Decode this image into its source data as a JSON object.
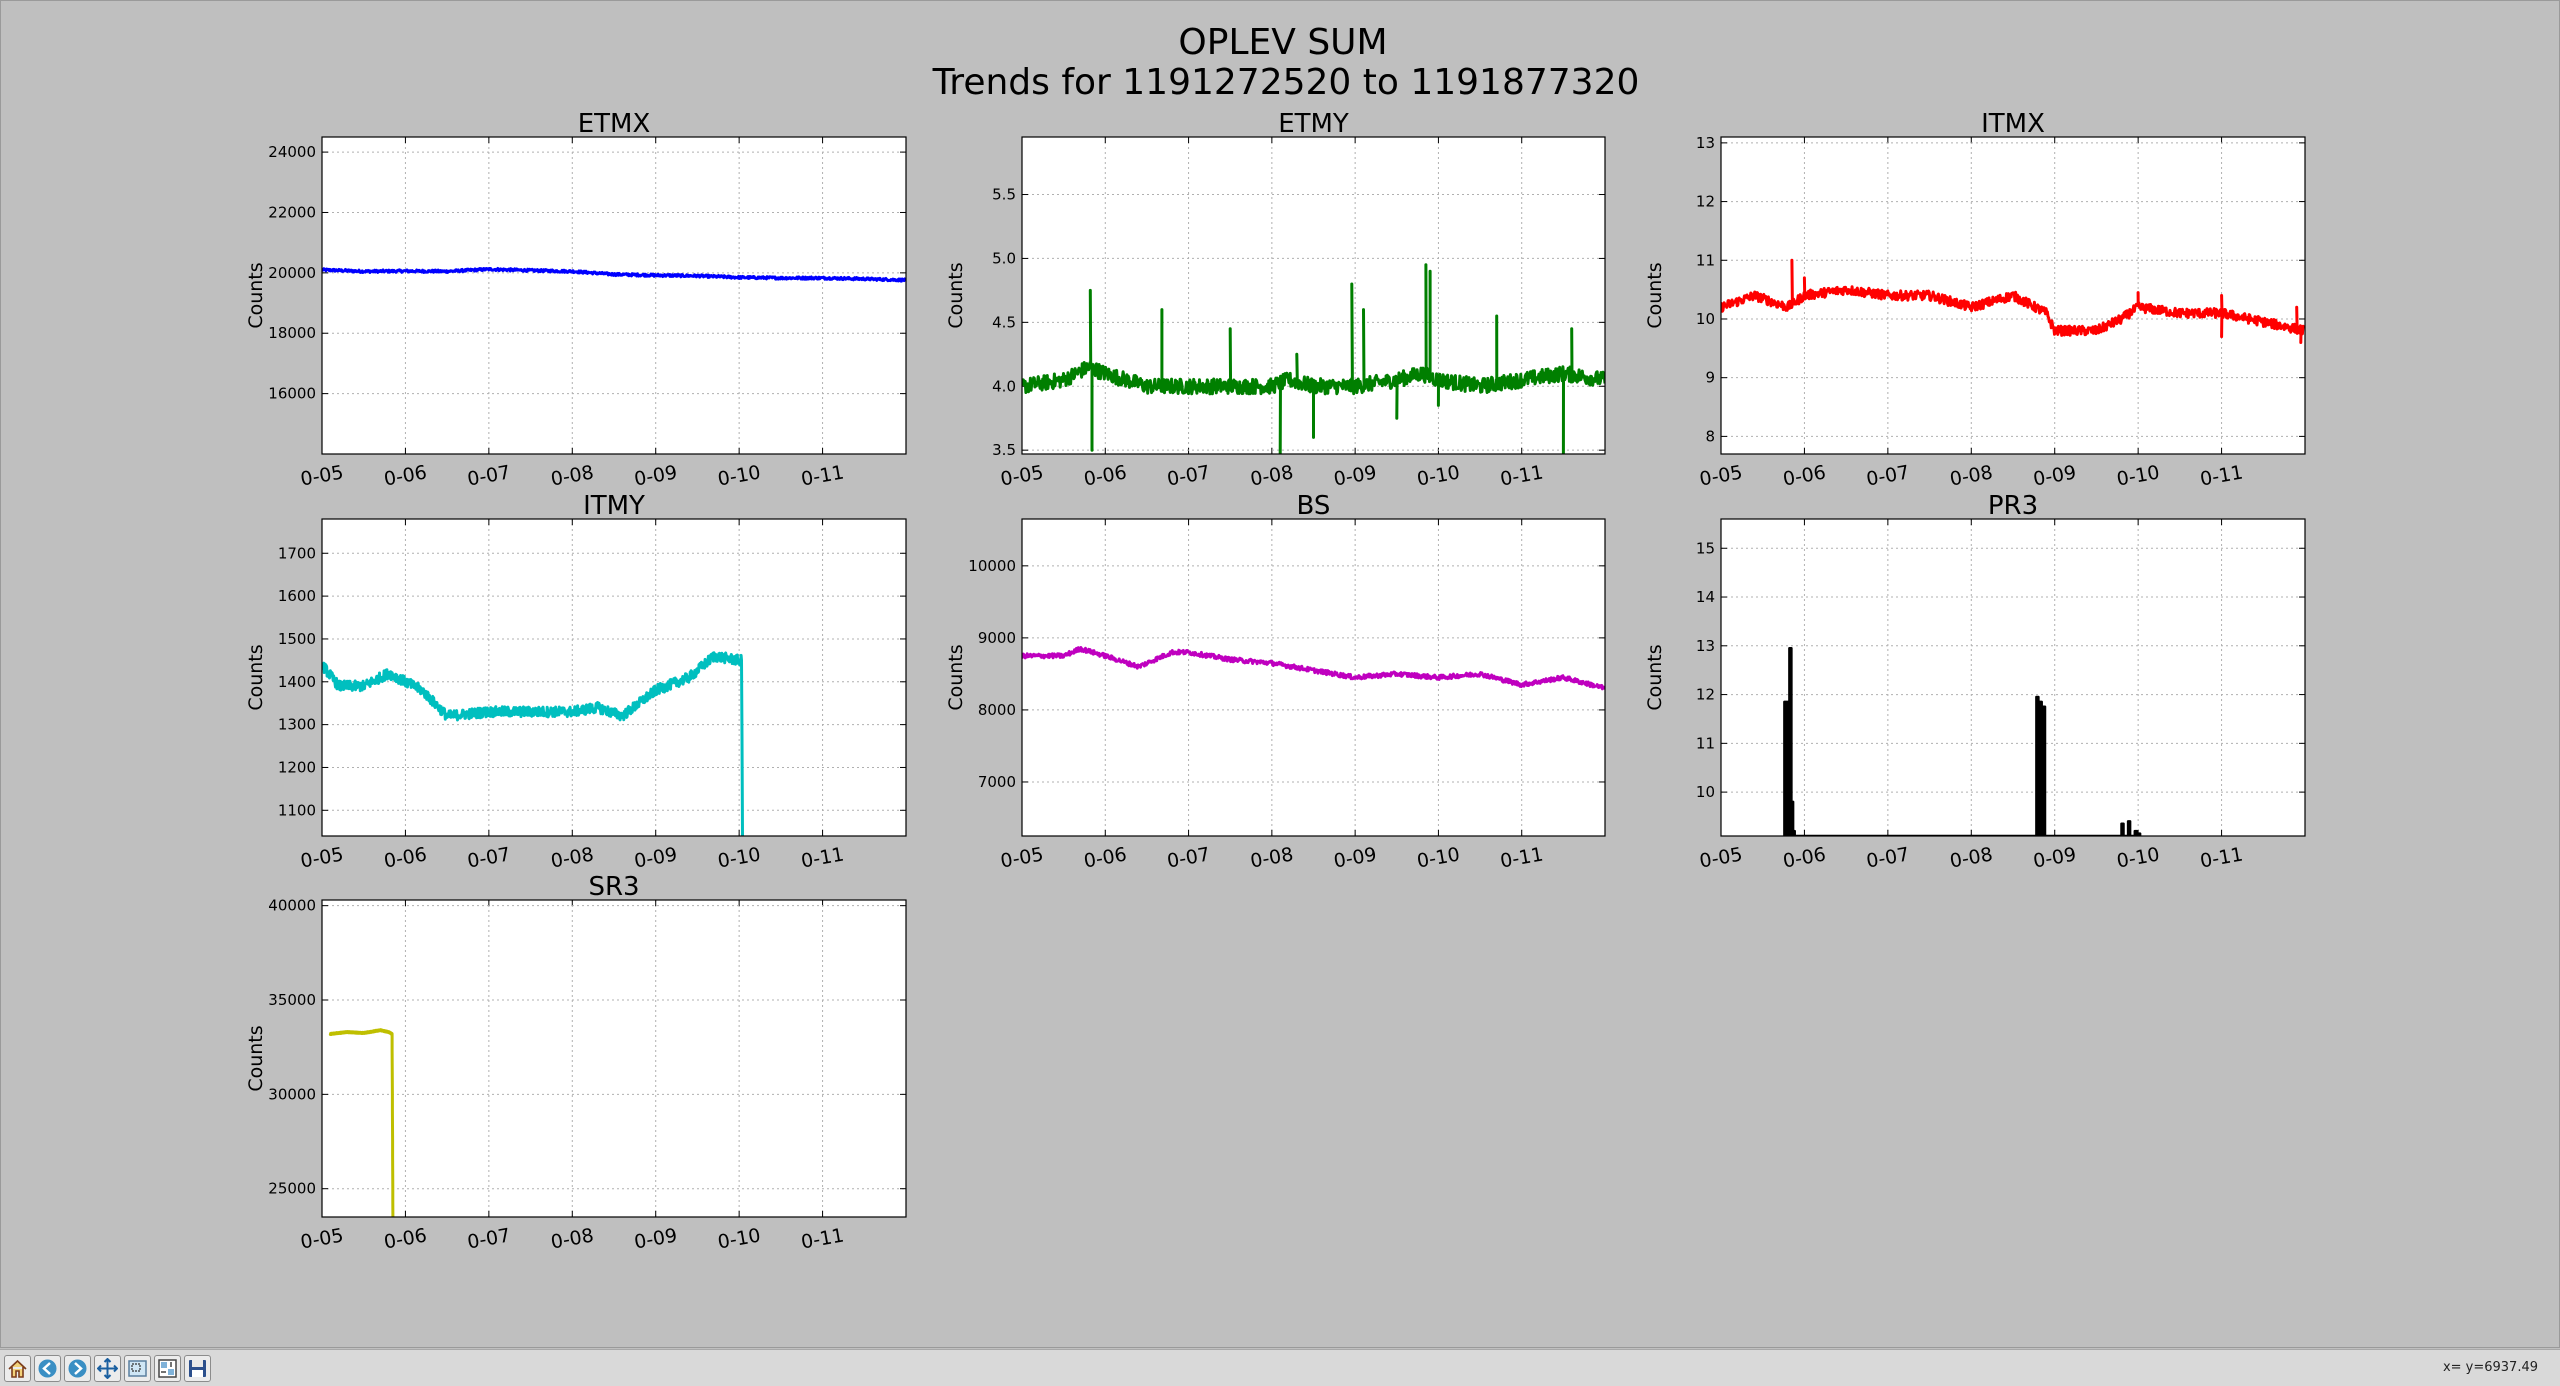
{
  "figure": {
    "title_line1": "OPLEV SUM",
    "title_line2": "Trends for 1191272520 to 1191877320"
  },
  "toolbar": {
    "buttons": [
      {
        "name": "home-button",
        "icon": "home-icon"
      },
      {
        "name": "back-button",
        "icon": "left-arrow-icon"
      },
      {
        "name": "forward-button",
        "icon": "right-arrow-icon"
      },
      {
        "name": "pan-button",
        "icon": "move-icon"
      },
      {
        "name": "zoom-button",
        "icon": "zoom-rect-icon"
      },
      {
        "name": "subplots-button",
        "icon": "subplots-icon"
      },
      {
        "name": "save-button",
        "icon": "floppy-disk-icon"
      }
    ],
    "coords": "x= y=6937.49"
  },
  "chart_data": [
    {
      "type": "line",
      "title": "ETMX",
      "ylabel": "Counts",
      "color": "#0000ff",
      "xlim": [
        0,
        7
      ],
      "x_ticks": [
        0,
        1,
        2,
        3,
        4,
        5,
        6
      ],
      "x_tick_labels": [
        "0-05",
        "0-06",
        "0-07",
        "0-08",
        "0-09",
        "0-10",
        "0-11"
      ],
      "ylim": [
        14000,
        24500
      ],
      "y_ticks": [
        16000,
        18000,
        20000,
        22000,
        24000
      ],
      "x": [
        0,
        0.5,
        1,
        1.5,
        2,
        2.5,
        3,
        3.5,
        4,
        4.5,
        5,
        5.5,
        6,
        6.5,
        7
      ],
      "y": [
        20100,
        20050,
        20060,
        20050,
        20120,
        20080,
        20050,
        19950,
        19920,
        19900,
        19850,
        19830,
        19830,
        19800,
        19760
      ],
      "noise": 40
    },
    {
      "type": "line",
      "title": "ETMY",
      "ylabel": "Counts",
      "color": "#007f00",
      "xlim": [
        0,
        7
      ],
      "x_ticks": [
        0,
        1,
        2,
        3,
        4,
        5,
        6
      ],
      "x_tick_labels": [
        "0-05",
        "0-06",
        "0-07",
        "0-08",
        "0-09",
        "0-10",
        "0-11"
      ],
      "ylim": [
        3.47,
        5.95
      ],
      "y_ticks": [
        3.5,
        4.0,
        4.5,
        5.0,
        5.5
      ],
      "x": [
        0,
        0.5,
        0.8,
        1.0,
        1.5,
        2,
        2.5,
        3,
        3.2,
        3.5,
        4,
        4.5,
        4.8,
        5,
        5.5,
        6,
        6.5,
        7
      ],
      "y": [
        4.0,
        4.05,
        4.15,
        4.1,
        4.0,
        4.0,
        4.0,
        4.0,
        4.05,
        4.0,
        4.0,
        4.05,
        4.1,
        4.05,
        4.0,
        4.05,
        4.1,
        4.05
      ],
      "noise": 0.06,
      "spikes": [
        [
          0.82,
          4.75
        ],
        [
          0.84,
          3.5
        ],
        [
          1.68,
          4.6
        ],
        [
          2.5,
          4.45
        ],
        [
          3.1,
          3.47
        ],
        [
          3.3,
          4.25
        ],
        [
          3.5,
          3.6
        ],
        [
          3.96,
          4.8
        ],
        [
          4.1,
          4.6
        ],
        [
          4.5,
          3.75
        ],
        [
          4.85,
          4.95
        ],
        [
          4.9,
          4.9
        ],
        [
          5.0,
          3.85
        ],
        [
          5.7,
          4.55
        ],
        [
          6.5,
          3.47
        ],
        [
          6.6,
          4.45
        ]
      ]
    },
    {
      "type": "line",
      "title": "ITMX",
      "ylabel": "Counts",
      "color": "#ff0000",
      "xlim": [
        0,
        7
      ],
      "x_ticks": [
        0,
        1,
        2,
        3,
        4,
        5,
        6
      ],
      "x_tick_labels": [
        "0-05",
        "0-06",
        "0-07",
        "0-08",
        "0-09",
        "0-10",
        "0-11"
      ],
      "ylim": [
        7.7,
        13.1
      ],
      "y_ticks": [
        8,
        9,
        10,
        11,
        12,
        13
      ],
      "x": [
        0,
        0.4,
        0.8,
        1,
        1.5,
        2,
        2.5,
        3,
        3.5,
        3.9,
        4,
        4.5,
        4.8,
        5,
        5.5,
        6,
        6.5,
        7
      ],
      "y": [
        10.2,
        10.4,
        10.2,
        10.4,
        10.5,
        10.4,
        10.4,
        10.2,
        10.4,
        10.1,
        9.8,
        9.8,
        10.0,
        10.2,
        10.1,
        10.1,
        9.95,
        9.8
      ],
      "noise": 0.08,
      "spikes": [
        [
          0.85,
          11.0
        ],
        [
          1.0,
          10.7
        ],
        [
          5.0,
          10.45
        ],
        [
          6.0,
          9.7
        ],
        [
          6.0,
          10.4
        ],
        [
          6.9,
          10.2
        ],
        [
          6.95,
          9.6
        ]
      ]
    },
    {
      "type": "line",
      "title": "ITMY",
      "ylabel": "Counts",
      "color": "#00bfbf",
      "xlim": [
        0,
        7
      ],
      "x_ticks": [
        0,
        1,
        2,
        3,
        4,
        5,
        6
      ],
      "x_tick_labels": [
        "0-05",
        "0-06",
        "0-07",
        "0-08",
        "0-09",
        "0-10",
        "0-11"
      ],
      "ylim": [
        1040,
        1780
      ],
      "y_ticks": [
        1100,
        1200,
        1300,
        1400,
        1500,
        1600,
        1700
      ],
      "x": [
        0,
        0.2,
        0.5,
        0.8,
        1.2,
        1.5,
        2,
        2.5,
        3,
        3.3,
        3.6,
        4,
        4.4,
        4.7,
        5.0,
        5.03,
        5.04
      ],
      "y": [
        1440,
        1390,
        1390,
        1420,
        1380,
        1320,
        1330,
        1330,
        1330,
        1340,
        1320,
        1380,
        1410,
        1460,
        1450,
        1450,
        1040
      ],
      "noise": 12
    },
    {
      "type": "line",
      "title": "BS",
      "ylabel": "Counts",
      "color": "#bf00bf",
      "xlim": [
        0,
        7
      ],
      "x_ticks": [
        0,
        1,
        2,
        3,
        4,
        5,
        6
      ],
      "x_tick_labels": [
        "0-05",
        "0-06",
        "0-07",
        "0-08",
        "0-09",
        "0-10",
        "0-11"
      ],
      "ylim": [
        6250,
        10650
      ],
      "y_ticks": [
        7000,
        8000,
        9000,
        10000
      ],
      "x": [
        0,
        0.5,
        0.7,
        1,
        1.4,
        1.8,
        2,
        2.5,
        3,
        3.5,
        4,
        4.5,
        5,
        5.5,
        6,
        6.5,
        7
      ],
      "y": [
        8750,
        8750,
        8850,
        8750,
        8600,
        8800,
        8800,
        8700,
        8650,
        8550,
        8450,
        8500,
        8450,
        8500,
        8350,
        8450,
        8300
      ],
      "noise": 30
    },
    {
      "type": "line",
      "title": "PR3",
      "ylabel": "Counts",
      "color": "#000000",
      "xlim": [
        0,
        7
      ],
      "x_ticks": [
        0,
        1,
        2,
        3,
        4,
        5,
        6
      ],
      "x_tick_labels": [
        "0-05",
        "0-06",
        "0-07",
        "0-08",
        "0-09",
        "0-10",
        "0-11"
      ],
      "ylim": [
        9.1,
        15.6
      ],
      "y_ticks": [
        10,
        11,
        12,
        13,
        14,
        15
      ],
      "bursts": [
        [
          0.76,
          11.85
        ],
        [
          0.78,
          11.85
        ],
        [
          0.8,
          11.85
        ],
        [
          0.82,
          12.95
        ],
        [
          0.84,
          9.8
        ],
        [
          0.86,
          9.2
        ],
        [
          3.78,
          11.95
        ],
        [
          3.82,
          11.85
        ],
        [
          3.86,
          11.75
        ],
        [
          4.8,
          9.35
        ],
        [
          4.88,
          9.4
        ],
        [
          4.96,
          9.2
        ],
        [
          5.0,
          9.15
        ]
      ],
      "noise": 0
    },
    {
      "type": "line",
      "title": "SR3",
      "ylabel": "Counts",
      "color": "#bfbf00",
      "xlim": [
        0,
        7
      ],
      "x_ticks": [
        0,
        1,
        2,
        3,
        4,
        5,
        6
      ],
      "x_tick_labels": [
        "0-05",
        "0-06",
        "0-07",
        "0-08",
        "0-09",
        "0-10",
        "0-11"
      ],
      "ylim": [
        23500,
        40300
      ],
      "y_ticks": [
        25000,
        30000,
        35000,
        40000
      ],
      "x": [
        0.1,
        0.3,
        0.5,
        0.7,
        0.8,
        0.84,
        0.85
      ],
      "y": [
        33200,
        33300,
        33250,
        33400,
        33300,
        33200,
        23500
      ],
      "noise": 30
    }
  ]
}
